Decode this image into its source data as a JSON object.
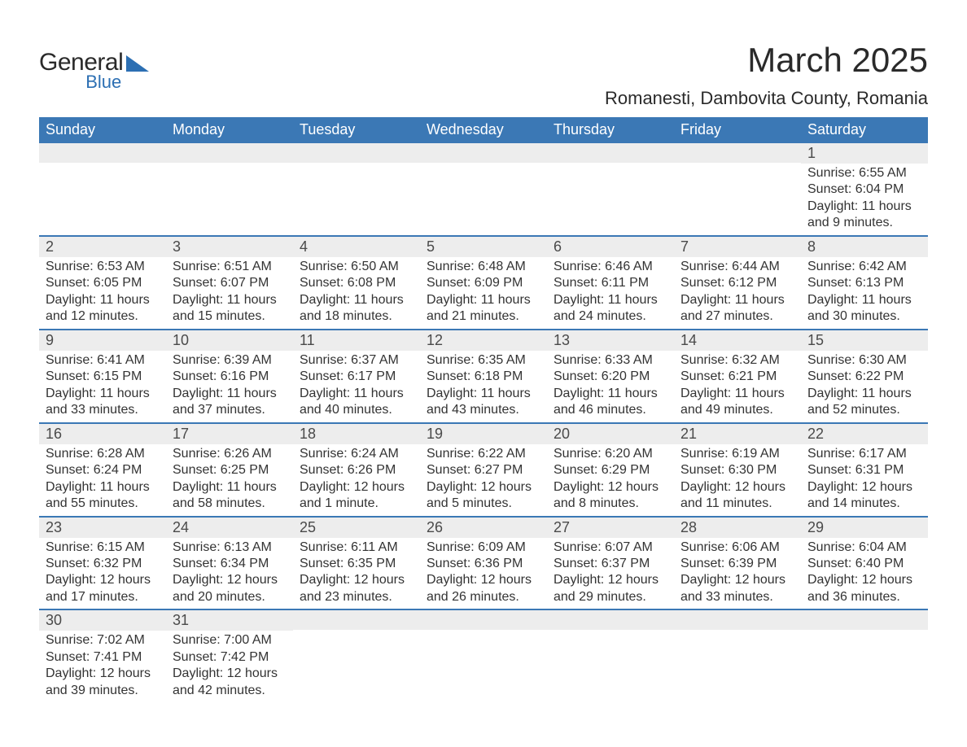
{
  "logo": {
    "general": "General",
    "blue": "Blue"
  },
  "title": "March 2025",
  "location": "Romanesti, Dambovita County, Romania",
  "colors": {
    "header_bg": "#3b78b5",
    "header_text": "#ffffff",
    "daynum_bg": "#ededed",
    "text": "#333333",
    "rule": "#3b78b5",
    "logo_blue": "#2c6fb3"
  },
  "day_names": [
    "Sunday",
    "Monday",
    "Tuesday",
    "Wednesday",
    "Thursday",
    "Friday",
    "Saturday"
  ],
  "weeks": [
    [
      {
        "n": "",
        "sr": "",
        "ss": "",
        "dl": ""
      },
      {
        "n": "",
        "sr": "",
        "ss": "",
        "dl": ""
      },
      {
        "n": "",
        "sr": "",
        "ss": "",
        "dl": ""
      },
      {
        "n": "",
        "sr": "",
        "ss": "",
        "dl": ""
      },
      {
        "n": "",
        "sr": "",
        "ss": "",
        "dl": ""
      },
      {
        "n": "",
        "sr": "",
        "ss": "",
        "dl": ""
      },
      {
        "n": "1",
        "sr": "Sunrise: 6:55 AM",
        "ss": "Sunset: 6:04 PM",
        "dl": "Daylight: 11 hours and 9 minutes."
      }
    ],
    [
      {
        "n": "2",
        "sr": "Sunrise: 6:53 AM",
        "ss": "Sunset: 6:05 PM",
        "dl": "Daylight: 11 hours and 12 minutes."
      },
      {
        "n": "3",
        "sr": "Sunrise: 6:51 AM",
        "ss": "Sunset: 6:07 PM",
        "dl": "Daylight: 11 hours and 15 minutes."
      },
      {
        "n": "4",
        "sr": "Sunrise: 6:50 AM",
        "ss": "Sunset: 6:08 PM",
        "dl": "Daylight: 11 hours and 18 minutes."
      },
      {
        "n": "5",
        "sr": "Sunrise: 6:48 AM",
        "ss": "Sunset: 6:09 PM",
        "dl": "Daylight: 11 hours and 21 minutes."
      },
      {
        "n": "6",
        "sr": "Sunrise: 6:46 AM",
        "ss": "Sunset: 6:11 PM",
        "dl": "Daylight: 11 hours and 24 minutes."
      },
      {
        "n": "7",
        "sr": "Sunrise: 6:44 AM",
        "ss": "Sunset: 6:12 PM",
        "dl": "Daylight: 11 hours and 27 minutes."
      },
      {
        "n": "8",
        "sr": "Sunrise: 6:42 AM",
        "ss": "Sunset: 6:13 PM",
        "dl": "Daylight: 11 hours and 30 minutes."
      }
    ],
    [
      {
        "n": "9",
        "sr": "Sunrise: 6:41 AM",
        "ss": "Sunset: 6:15 PM",
        "dl": "Daylight: 11 hours and 33 minutes."
      },
      {
        "n": "10",
        "sr": "Sunrise: 6:39 AM",
        "ss": "Sunset: 6:16 PM",
        "dl": "Daylight: 11 hours and 37 minutes."
      },
      {
        "n": "11",
        "sr": "Sunrise: 6:37 AM",
        "ss": "Sunset: 6:17 PM",
        "dl": "Daylight: 11 hours and 40 minutes."
      },
      {
        "n": "12",
        "sr": "Sunrise: 6:35 AM",
        "ss": "Sunset: 6:18 PM",
        "dl": "Daylight: 11 hours and 43 minutes."
      },
      {
        "n": "13",
        "sr": "Sunrise: 6:33 AM",
        "ss": "Sunset: 6:20 PM",
        "dl": "Daylight: 11 hours and 46 minutes."
      },
      {
        "n": "14",
        "sr": "Sunrise: 6:32 AM",
        "ss": "Sunset: 6:21 PM",
        "dl": "Daylight: 11 hours and 49 minutes."
      },
      {
        "n": "15",
        "sr": "Sunrise: 6:30 AM",
        "ss": "Sunset: 6:22 PM",
        "dl": "Daylight: 11 hours and 52 minutes."
      }
    ],
    [
      {
        "n": "16",
        "sr": "Sunrise: 6:28 AM",
        "ss": "Sunset: 6:24 PM",
        "dl": "Daylight: 11 hours and 55 minutes."
      },
      {
        "n": "17",
        "sr": "Sunrise: 6:26 AM",
        "ss": "Sunset: 6:25 PM",
        "dl": "Daylight: 11 hours and 58 minutes."
      },
      {
        "n": "18",
        "sr": "Sunrise: 6:24 AM",
        "ss": "Sunset: 6:26 PM",
        "dl": "Daylight: 12 hours and 1 minute."
      },
      {
        "n": "19",
        "sr": "Sunrise: 6:22 AM",
        "ss": "Sunset: 6:27 PM",
        "dl": "Daylight: 12 hours and 5 minutes."
      },
      {
        "n": "20",
        "sr": "Sunrise: 6:20 AM",
        "ss": "Sunset: 6:29 PM",
        "dl": "Daylight: 12 hours and 8 minutes."
      },
      {
        "n": "21",
        "sr": "Sunrise: 6:19 AM",
        "ss": "Sunset: 6:30 PM",
        "dl": "Daylight: 12 hours and 11 minutes."
      },
      {
        "n": "22",
        "sr": "Sunrise: 6:17 AM",
        "ss": "Sunset: 6:31 PM",
        "dl": "Daylight: 12 hours and 14 minutes."
      }
    ],
    [
      {
        "n": "23",
        "sr": "Sunrise: 6:15 AM",
        "ss": "Sunset: 6:32 PM",
        "dl": "Daylight: 12 hours and 17 minutes."
      },
      {
        "n": "24",
        "sr": "Sunrise: 6:13 AM",
        "ss": "Sunset: 6:34 PM",
        "dl": "Daylight: 12 hours and 20 minutes."
      },
      {
        "n": "25",
        "sr": "Sunrise: 6:11 AM",
        "ss": "Sunset: 6:35 PM",
        "dl": "Daylight: 12 hours and 23 minutes."
      },
      {
        "n": "26",
        "sr": "Sunrise: 6:09 AM",
        "ss": "Sunset: 6:36 PM",
        "dl": "Daylight: 12 hours and 26 minutes."
      },
      {
        "n": "27",
        "sr": "Sunrise: 6:07 AM",
        "ss": "Sunset: 6:37 PM",
        "dl": "Daylight: 12 hours and 29 minutes."
      },
      {
        "n": "28",
        "sr": "Sunrise: 6:06 AM",
        "ss": "Sunset: 6:39 PM",
        "dl": "Daylight: 12 hours and 33 minutes."
      },
      {
        "n": "29",
        "sr": "Sunrise: 6:04 AM",
        "ss": "Sunset: 6:40 PM",
        "dl": "Daylight: 12 hours and 36 minutes."
      }
    ],
    [
      {
        "n": "30",
        "sr": "Sunrise: 7:02 AM",
        "ss": "Sunset: 7:41 PM",
        "dl": "Daylight: 12 hours and 39 minutes."
      },
      {
        "n": "31",
        "sr": "Sunrise: 7:00 AM",
        "ss": "Sunset: 7:42 PM",
        "dl": "Daylight: 12 hours and 42 minutes."
      },
      {
        "n": "",
        "sr": "",
        "ss": "",
        "dl": ""
      },
      {
        "n": "",
        "sr": "",
        "ss": "",
        "dl": ""
      },
      {
        "n": "",
        "sr": "",
        "ss": "",
        "dl": ""
      },
      {
        "n": "",
        "sr": "",
        "ss": "",
        "dl": ""
      },
      {
        "n": "",
        "sr": "",
        "ss": "",
        "dl": ""
      }
    ]
  ]
}
